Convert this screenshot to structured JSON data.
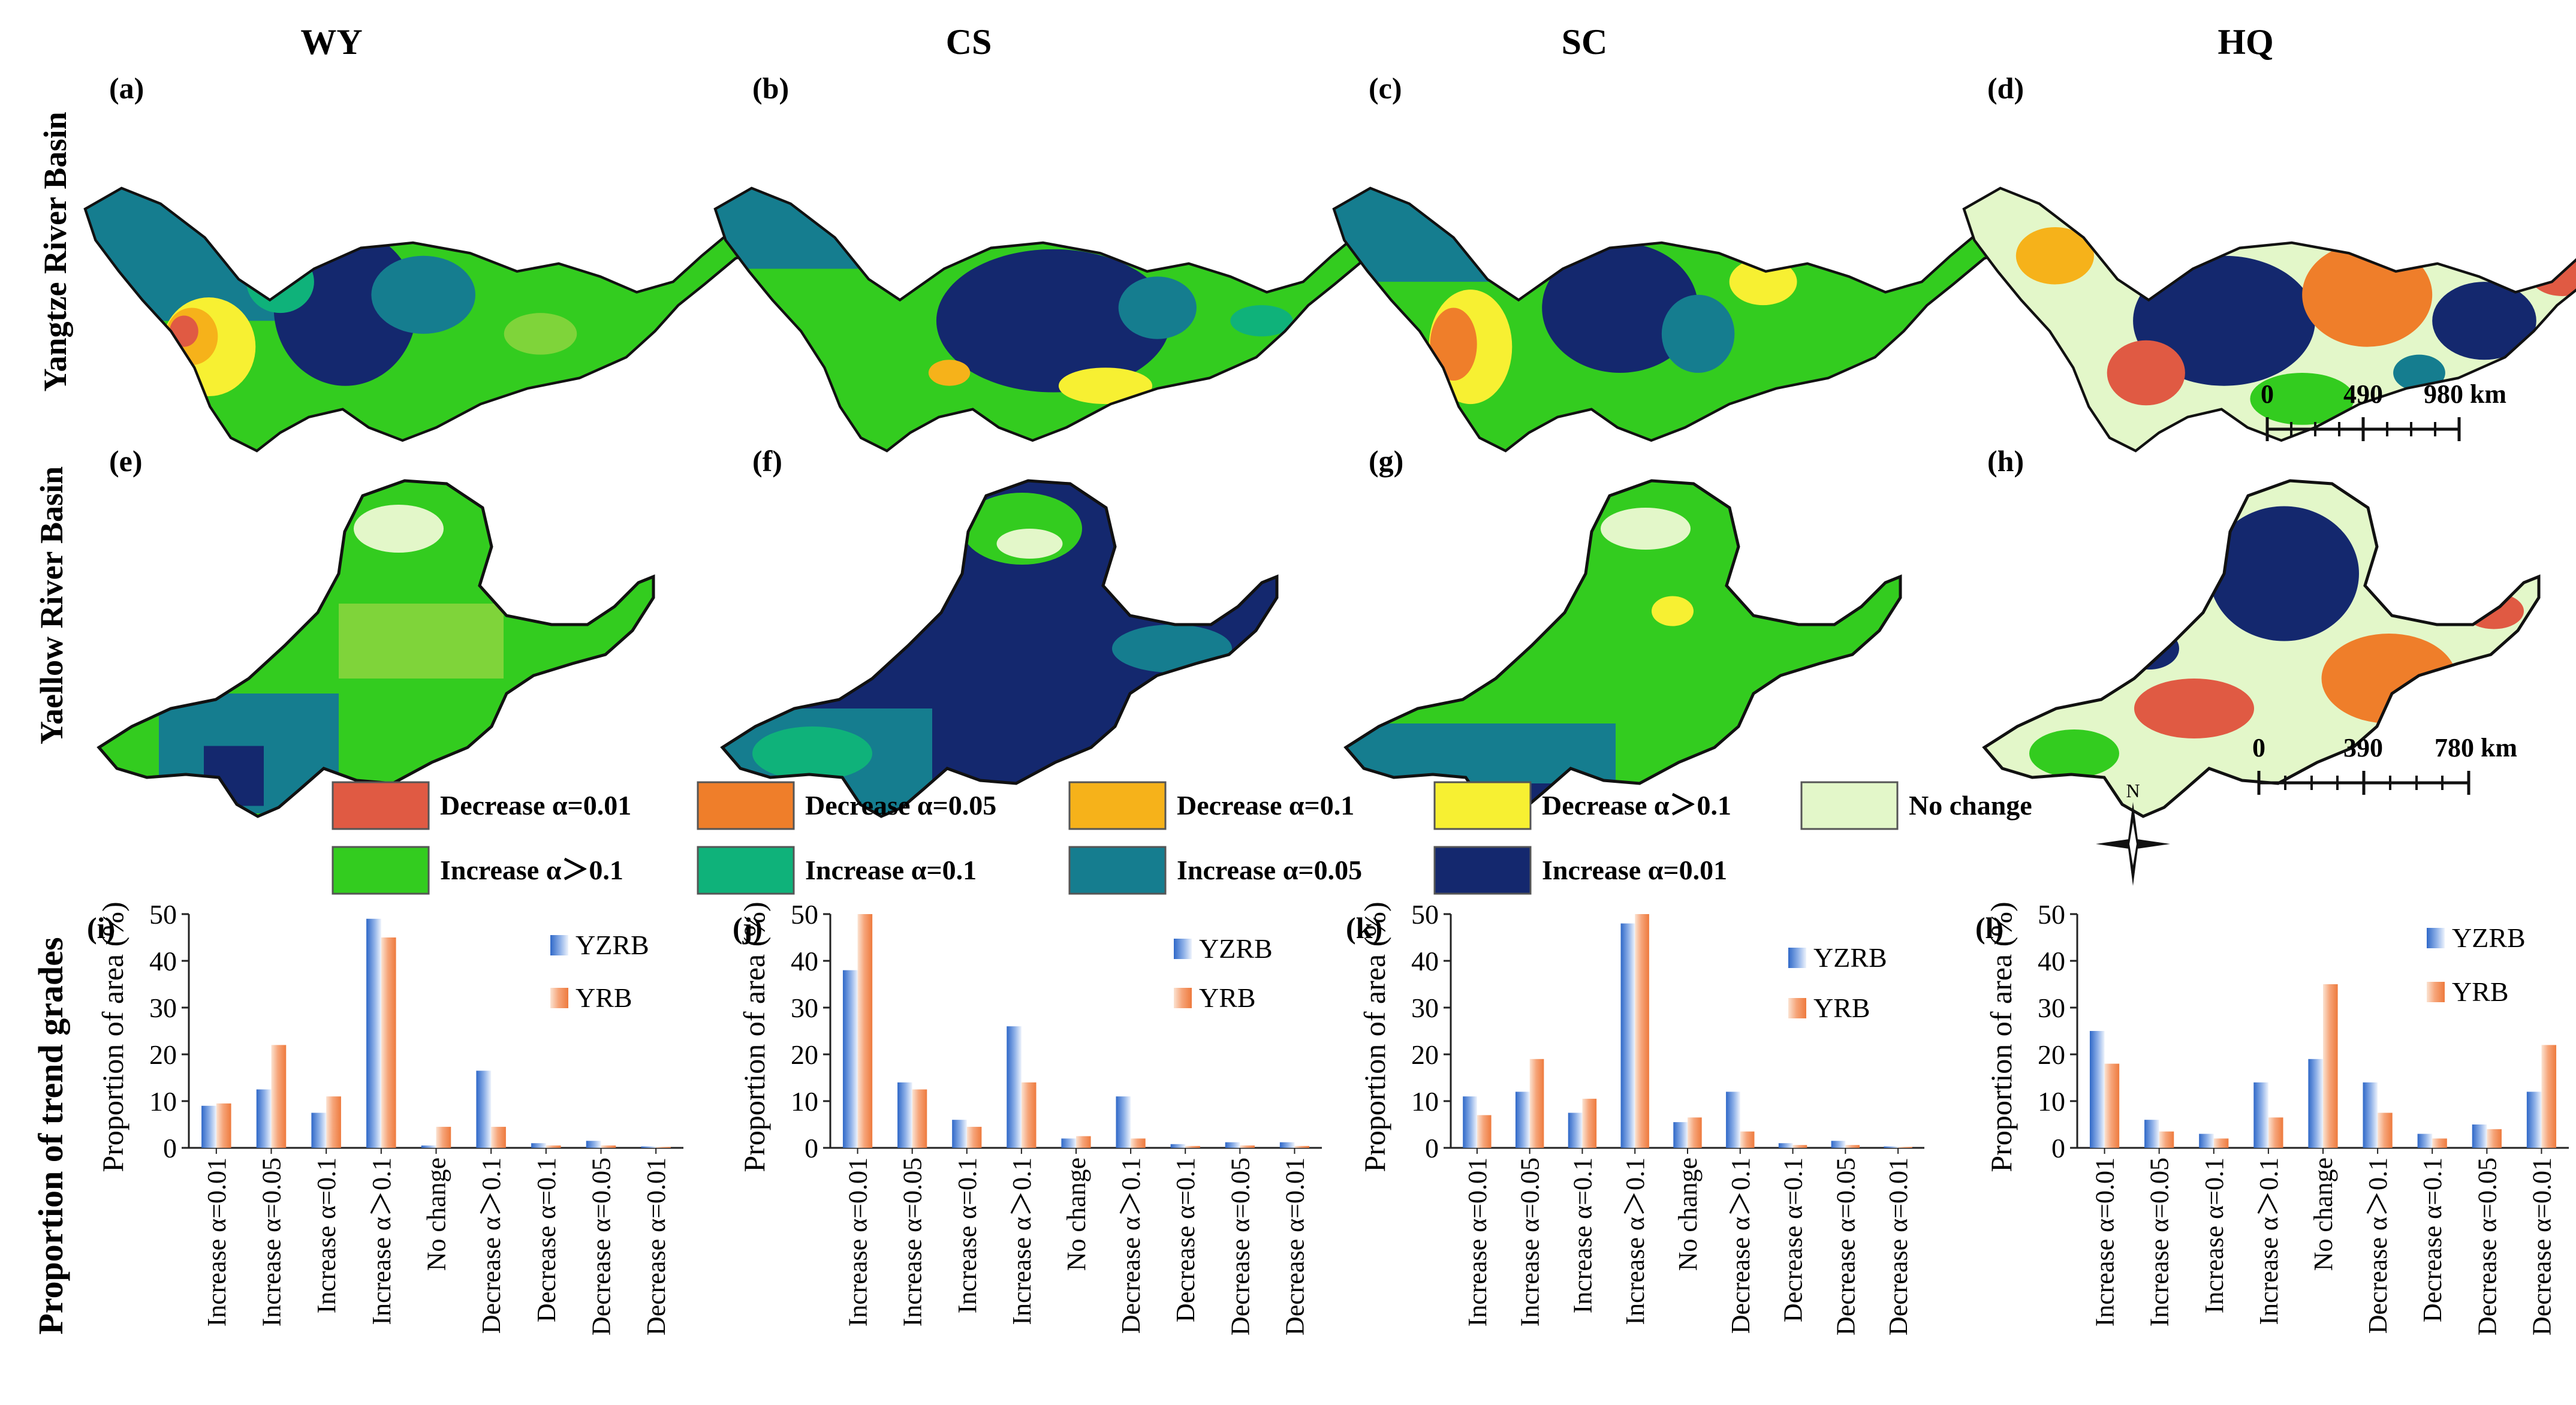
{
  "columns": [
    "WY",
    "CS",
    "SC",
    "HQ"
  ],
  "rows": [
    "Yangtze River Basin",
    "Yaellow River Basin"
  ],
  "panels": {
    "maps_top": [
      "(a)",
      "(b)",
      "(c)",
      "(d)"
    ],
    "maps_bottom": [
      "(e)",
      "(f)",
      "(g)",
      "(h)"
    ]
  },
  "scalebars": {
    "yangtze": {
      "ticks": [
        "0",
        "490",
        "980 km"
      ]
    },
    "yellow": {
      "ticks": [
        "0",
        "390",
        "780 km"
      ]
    }
  },
  "compass_label": "N",
  "legend": {
    "items": [
      {
        "label": "Decrease α=0.01",
        "color": "#e05a43"
      },
      {
        "label": "Decrease α=0.05",
        "color": "#ef7e2a"
      },
      {
        "label": "Decrease α=0.1",
        "color": "#f6b21a"
      },
      {
        "label": "Decrease α＞0.1",
        "color": "#f7f032"
      },
      {
        "label": "No change",
        "color": "#e3f7c9"
      },
      {
        "label": "Increase α＞0.1",
        "color": "#33cc1f"
      },
      {
        "label": "Increase α=0.1",
        "color": "#0fb27a"
      },
      {
        "label": "Increase α=0.05",
        "color": "#157d8f"
      },
      {
        "label": "Increase α=0.01",
        "color": "#14286e"
      }
    ]
  },
  "map_colors": {
    "increase_gt": "#33cc1f",
    "increase_01": "#0fb27a",
    "increase_005": "#157d8f",
    "increase_001": "#14286e",
    "decrease_gt": "#f7f032",
    "decrease_01": "#f6b21a",
    "decrease_005": "#ef7e2a",
    "decrease_001": "#e05a43",
    "no_change": "#e3f7c9",
    "outline": "#111111"
  },
  "chart_shared": {
    "ylabel": "Proportion of area (%)",
    "group_label": "Proportion of trend grades",
    "ylim": [
      0,
      50
    ],
    "yticks": [
      "0",
      "10",
      "20",
      "30",
      "40",
      "50"
    ],
    "series_names": [
      "YZRB",
      "YRB"
    ],
    "series_colors": [
      "#4a7fd4",
      "#f28a55"
    ]
  },
  "chart_data": [
    {
      "type": "bar",
      "panel": "(i)",
      "title": "",
      "ylabel": "Proportion of area (%)",
      "ylim": [
        0,
        50
      ],
      "categories": [
        "Increase α=0.01",
        "Increase α=0.05",
        "Increase α=0.1",
        "Increase α＞0.1",
        "No change",
        "Decrease α＞0.1",
        "Decrease α=0.1",
        "Decrease α=0.05",
        "Decrease α=0.01"
      ],
      "series": [
        {
          "name": "YZRB",
          "values": [
            9,
            12.5,
            7.5,
            49,
            0.5,
            16.5,
            1,
            1.5,
            0.3
          ]
        },
        {
          "name": "YRB",
          "values": [
            9.5,
            22,
            11,
            45,
            4.5,
            4.5,
            0.5,
            0.5,
            0.2
          ]
        }
      ]
    },
    {
      "type": "bar",
      "panel": "(j)",
      "title": "",
      "ylabel": "Proportion of area (%)",
      "ylim": [
        0,
        50
      ],
      "categories": [
        "Increase α=0.01",
        "Increase α=0.05",
        "Increase α=0.1",
        "Increase α＞0.1",
        "No change",
        "Decrease α＞0.1",
        "Decrease α=0.1",
        "Decrease α=0.05",
        "Decrease α=0.01"
      ],
      "series": [
        {
          "name": "YZRB",
          "values": [
            38,
            14,
            6,
            26,
            2,
            11,
            0.8,
            1.2,
            1.2
          ]
        },
        {
          "name": "YRB",
          "values": [
            50,
            12.5,
            4.5,
            14,
            2.5,
            2,
            0.4,
            0.5,
            0.4
          ]
        }
      ]
    },
    {
      "type": "bar",
      "panel": "(k)",
      "title": "",
      "ylabel": "Proportion of area (%)",
      "ylim": [
        0,
        50
      ],
      "categories": [
        "Increase α=0.01",
        "Increase α=0.05",
        "Increase α=0.1",
        "Increase α＞0.1",
        "No change",
        "Decrease α＞0.1",
        "Decrease α=0.1",
        "Decrease α=0.05",
        "Decrease α=0.01"
      ],
      "series": [
        {
          "name": "YZRB",
          "values": [
            11,
            12,
            7.5,
            48,
            5.5,
            12,
            1,
            1.5,
            0.3
          ]
        },
        {
          "name": "YRB",
          "values": [
            7,
            19,
            10.5,
            50,
            6.5,
            3.5,
            0.6,
            0.6,
            0.2
          ]
        }
      ]
    },
    {
      "type": "bar",
      "panel": "(l)",
      "title": "",
      "ylabel": "Proportion of area (%)",
      "ylim": [
        0,
        50
      ],
      "categories": [
        "Increase α=0.01",
        "Increase α=0.05",
        "Increase α=0.1",
        "Increase α＞0.1",
        "No change",
        "Decrease α＞0.1",
        "Decrease α=0.1",
        "Decrease α=0.05",
        "Decrease α=0.01"
      ],
      "series": [
        {
          "name": "YZRB",
          "values": [
            25,
            6,
            3,
            14,
            19,
            14,
            3,
            5,
            12
          ]
        },
        {
          "name": "YRB",
          "values": [
            18,
            3.5,
            2,
            6.5,
            35,
            7.5,
            2,
            4,
            22
          ]
        }
      ]
    }
  ]
}
